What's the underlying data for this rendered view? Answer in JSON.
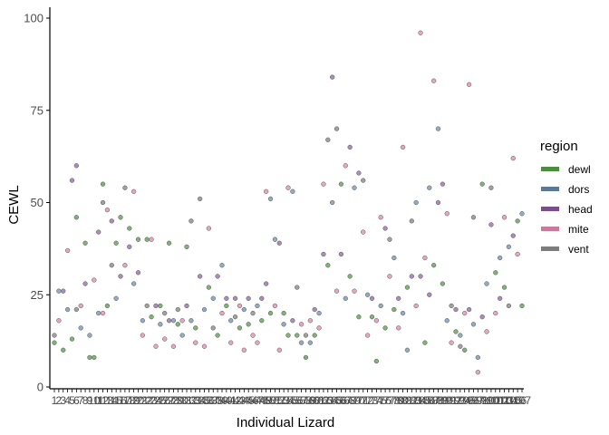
{
  "chart_data": {
    "type": "scatter",
    "xlabel": "Individual Lizard",
    "ylabel": "CEWL",
    "ylim": [
      0,
      100
    ],
    "yticks": [
      0,
      25,
      50,
      75,
      100
    ],
    "legend": {
      "title": "region",
      "position": "right",
      "entries": [
        {
          "name": "dewl",
          "color": "#4a8f3e"
        },
        {
          "name": "dors",
          "color": "#5d7a94"
        },
        {
          "name": "head",
          "color": "#7b4f8c"
        },
        {
          "name": "mite",
          "color": "#c97a9a"
        },
        {
          "name": "vent",
          "color": "#7d7d7d"
        }
      ]
    },
    "colors": {
      "dewl": "#6aa35e",
      "dors": "#7f9cb5",
      "head": "#9b78ad",
      "mite": "#e296b3",
      "vent": "#8f8f8f"
    },
    "x_categories_note_free": true,
    "points": [
      {
        "x": 1,
        "y": 14,
        "region": "vent"
      },
      {
        "x": 1,
        "y": 12,
        "region": "dewl"
      },
      {
        "x": 2,
        "y": 26,
        "region": "dors"
      },
      {
        "x": 2,
        "y": 18,
        "region": "mite"
      },
      {
        "x": 3,
        "y": 10,
        "region": "dewl"
      },
      {
        "x": 3,
        "y": 26,
        "region": "head"
      },
      {
        "x": 4,
        "y": 37,
        "region": "mite"
      },
      {
        "x": 4,
        "y": 21,
        "region": "dors"
      },
      {
        "x": 5,
        "y": 56,
        "region": "head"
      },
      {
        "x": 5,
        "y": 13,
        "region": "dewl"
      },
      {
        "x": 6,
        "y": 60,
        "region": "head"
      },
      {
        "x": 6,
        "y": 46,
        "region": "dewl"
      },
      {
        "x": 6,
        "y": 21,
        "region": "vent"
      },
      {
        "x": 7,
        "y": 22,
        "region": "mite"
      },
      {
        "x": 7,
        "y": 16,
        "region": "dors"
      },
      {
        "x": 8,
        "y": 39,
        "region": "dewl"
      },
      {
        "x": 8,
        "y": 28,
        "region": "head"
      },
      {
        "x": 9,
        "y": 14,
        "region": "dors"
      },
      {
        "x": 9,
        "y": 8,
        "region": "dewl"
      },
      {
        "x": 10,
        "y": 8,
        "region": "dewl"
      },
      {
        "x": 10,
        "y": 29,
        "region": "mite"
      },
      {
        "x": 11,
        "y": 42,
        "region": "head"
      },
      {
        "x": 11,
        "y": 20,
        "region": "dors"
      },
      {
        "x": 12,
        "y": 55,
        "region": "dewl"
      },
      {
        "x": 12,
        "y": 50,
        "region": "vent"
      },
      {
        "x": 12,
        "y": 20,
        "region": "mite"
      },
      {
        "x": 13,
        "y": 48,
        "region": "mite"
      },
      {
        "x": 13,
        "y": 22,
        "region": "dewl"
      },
      {
        "x": 14,
        "y": 45,
        "region": "head"
      },
      {
        "x": 14,
        "y": 33,
        "region": "vent"
      },
      {
        "x": 15,
        "y": 39,
        "region": "dewl"
      },
      {
        "x": 15,
        "y": 24,
        "region": "dors"
      },
      {
        "x": 16,
        "y": 46,
        "region": "dewl"
      },
      {
        "x": 16,
        "y": 30,
        "region": "head"
      },
      {
        "x": 17,
        "y": 54,
        "region": "vent"
      },
      {
        "x": 17,
        "y": 33,
        "region": "mite"
      },
      {
        "x": 18,
        "y": 43,
        "region": "dewl"
      },
      {
        "x": 18,
        "y": 38,
        "region": "head"
      },
      {
        "x": 19,
        "y": 53,
        "region": "mite"
      },
      {
        "x": 19,
        "y": 28,
        "region": "dors"
      },
      {
        "x": 20,
        "y": 40,
        "region": "dewl"
      },
      {
        "x": 20,
        "y": 31,
        "region": "head"
      },
      {
        "x": 21,
        "y": 18,
        "region": "dors"
      },
      {
        "x": 21,
        "y": 14,
        "region": "mite"
      },
      {
        "x": 22,
        "y": 40,
        "region": "dewl"
      },
      {
        "x": 22,
        "y": 22,
        "region": "vent"
      },
      {
        "x": 23,
        "y": 40,
        "region": "mite"
      },
      {
        "x": 23,
        "y": 19,
        "region": "dewl"
      },
      {
        "x": 24,
        "y": 22,
        "region": "head"
      },
      {
        "x": 24,
        "y": 11,
        "region": "mite"
      },
      {
        "x": 25,
        "y": 17,
        "region": "dors"
      },
      {
        "x": 25,
        "y": 22,
        "region": "dewl"
      },
      {
        "x": 26,
        "y": 20,
        "region": "vent"
      },
      {
        "x": 26,
        "y": 13,
        "region": "mite"
      },
      {
        "x": 27,
        "y": 39,
        "region": "dewl"
      },
      {
        "x": 27,
        "y": 18,
        "region": "head"
      },
      {
        "x": 28,
        "y": 18,
        "region": "dors"
      },
      {
        "x": 28,
        "y": 11,
        "region": "mite"
      },
      {
        "x": 29,
        "y": 17,
        "region": "dewl"
      },
      {
        "x": 29,
        "y": 21,
        "region": "vent"
      },
      {
        "x": 30,
        "y": 18,
        "region": "mite"
      },
      {
        "x": 30,
        "y": 14,
        "region": "dors"
      },
      {
        "x": 31,
        "y": 38,
        "region": "dewl"
      },
      {
        "x": 31,
        "y": 22,
        "region": "head"
      },
      {
        "x": 32,
        "y": 45,
        "region": "vent"
      },
      {
        "x": 32,
        "y": 18,
        "region": "dors"
      },
      {
        "x": 33,
        "y": 12,
        "region": "mite"
      },
      {
        "x": 33,
        "y": 16,
        "region": "dewl"
      },
      {
        "x": 34,
        "y": 51,
        "region": "vent"
      },
      {
        "x": 34,
        "y": 30,
        "region": "head"
      },
      {
        "x": 35,
        "y": 21,
        "region": "dors"
      },
      {
        "x": 35,
        "y": 11,
        "region": "mite"
      },
      {
        "x": 36,
        "y": 43,
        "region": "mite"
      },
      {
        "x": 36,
        "y": 27,
        "region": "dewl"
      },
      {
        "x": 37,
        "y": 24,
        "region": "dors"
      },
      {
        "x": 37,
        "y": 16,
        "region": "vent"
      },
      {
        "x": 38,
        "y": 30,
        "region": "head"
      },
      {
        "x": 38,
        "y": 14,
        "region": "dewl"
      },
      {
        "x": 39,
        "y": 33,
        "region": "dors"
      },
      {
        "x": 39,
        "y": 20,
        "region": "mite"
      },
      {
        "x": 40,
        "y": 22,
        "region": "dewl"
      },
      {
        "x": 40,
        "y": 24,
        "region": "head"
      },
      {
        "x": 41,
        "y": 18,
        "region": "dors"
      },
      {
        "x": 41,
        "y": 12,
        "region": "mite"
      },
      {
        "x": 42,
        "y": 24,
        "region": "head"
      },
      {
        "x": 42,
        "y": 19,
        "region": "vent"
      },
      {
        "x": 43,
        "y": 16,
        "region": "dewl"
      },
      {
        "x": 43,
        "y": 22,
        "region": "mite"
      },
      {
        "x": 44,
        "y": 21,
        "region": "dors"
      },
      {
        "x": 44,
        "y": 10,
        "region": "mite"
      },
      {
        "x": 45,
        "y": 24,
        "region": "head"
      },
      {
        "x": 45,
        "y": 17,
        "region": "dewl"
      },
      {
        "x": 46,
        "y": 14,
        "region": "mite"
      },
      {
        "x": 46,
        "y": 20,
        "region": "vent"
      },
      {
        "x": 47,
        "y": 22,
        "region": "dors"
      },
      {
        "x": 47,
        "y": 12,
        "region": "mite"
      },
      {
        "x": 48,
        "y": 24,
        "region": "head"
      },
      {
        "x": 48,
        "y": 18,
        "region": "dewl"
      },
      {
        "x": 49,
        "y": 53,
        "region": "mite"
      },
      {
        "x": 49,
        "y": 28,
        "region": "head"
      },
      {
        "x": 50,
        "y": 51,
        "region": "dors"
      },
      {
        "x": 50,
        "y": 20,
        "region": "dewl"
      },
      {
        "x": 51,
        "y": 40,
        "region": "dors"
      },
      {
        "x": 51,
        "y": 22,
        "region": "mite"
      },
      {
        "x": 52,
        "y": 39,
        "region": "head"
      },
      {
        "x": 52,
        "y": 10,
        "region": "mite"
      },
      {
        "x": 53,
        "y": 20,
        "region": "dewl"
      },
      {
        "x": 53,
        "y": 17,
        "region": "dors"
      },
      {
        "x": 54,
        "y": 54,
        "region": "mite"
      },
      {
        "x": 54,
        "y": 14,
        "region": "dewl"
      },
      {
        "x": 55,
        "y": 53,
        "region": "dors"
      },
      {
        "x": 55,
        "y": 18,
        "region": "head"
      },
      {
        "x": 56,
        "y": 27,
        "region": "vent"
      },
      {
        "x": 56,
        "y": 14,
        "region": "dewl"
      },
      {
        "x": 57,
        "y": 17,
        "region": "mite"
      },
      {
        "x": 57,
        "y": 12,
        "region": "dors"
      },
      {
        "x": 58,
        "y": 8,
        "region": "dewl"
      },
      {
        "x": 58,
        "y": 14,
        "region": "vent"
      },
      {
        "x": 59,
        "y": 18,
        "region": "mite"
      },
      {
        "x": 59,
        "y": 12,
        "region": "dors"
      },
      {
        "x": 60,
        "y": 21,
        "region": "head"
      },
      {
        "x": 60,
        "y": 14,
        "region": "dewl"
      },
      {
        "x": 61,
        "y": 20,
        "region": "dors"
      },
      {
        "x": 61,
        "y": 16,
        "region": "mite"
      },
      {
        "x": 62,
        "y": 55,
        "region": "mite"
      },
      {
        "x": 62,
        "y": 36,
        "region": "head"
      },
      {
        "x": 63,
        "y": 67,
        "region": "vent"
      },
      {
        "x": 63,
        "y": 33,
        "region": "dewl"
      },
      {
        "x": 64,
        "y": 84,
        "region": "head"
      },
      {
        "x": 64,
        "y": 50,
        "region": "dors"
      },
      {
        "x": 65,
        "y": 70,
        "region": "vent"
      },
      {
        "x": 65,
        "y": 26,
        "region": "mite"
      },
      {
        "x": 66,
        "y": 55,
        "region": "dewl"
      },
      {
        "x": 66,
        "y": 36,
        "region": "head"
      },
      {
        "x": 67,
        "y": 60,
        "region": "mite"
      },
      {
        "x": 67,
        "y": 24,
        "region": "dors"
      },
      {
        "x": 68,
        "y": 65,
        "region": "head"
      },
      {
        "x": 68,
        "y": 30,
        "region": "dewl"
      },
      {
        "x": 69,
        "y": 54,
        "region": "dors"
      },
      {
        "x": 69,
        "y": 26,
        "region": "mite"
      },
      {
        "x": 70,
        "y": 58,
        "region": "head"
      },
      {
        "x": 70,
        "y": 19,
        "region": "dewl"
      },
      {
        "x": 71,
        "y": 56,
        "region": "vent"
      },
      {
        "x": 71,
        "y": 42,
        "region": "mite"
      },
      {
        "x": 72,
        "y": 25,
        "region": "dors"
      },
      {
        "x": 72,
        "y": 14,
        "region": "mite"
      },
      {
        "x": 73,
        "y": 19,
        "region": "dewl"
      },
      {
        "x": 73,
        "y": 24,
        "region": "head"
      },
      {
        "x": 74,
        "y": 7,
        "region": "dewl"
      },
      {
        "x": 74,
        "y": 18,
        "region": "mite"
      },
      {
        "x": 75,
        "y": 46,
        "region": "mite"
      },
      {
        "x": 75,
        "y": 22,
        "region": "dors"
      },
      {
        "x": 76,
        "y": 43,
        "region": "head"
      },
      {
        "x": 76,
        "y": 16,
        "region": "dewl"
      },
      {
        "x": 77,
        "y": 40,
        "region": "vent"
      },
      {
        "x": 77,
        "y": 30,
        "region": "mite"
      },
      {
        "x": 78,
        "y": 35,
        "region": "dors"
      },
      {
        "x": 78,
        "y": 21,
        "region": "dewl"
      },
      {
        "x": 79,
        "y": 24,
        "region": "head"
      },
      {
        "x": 79,
        "y": 16,
        "region": "mite"
      },
      {
        "x": 80,
        "y": 65,
        "region": "mite"
      },
      {
        "x": 80,
        "y": 20,
        "region": "dors"
      },
      {
        "x": 81,
        "y": 10,
        "region": "dors"
      },
      {
        "x": 81,
        "y": 27,
        "region": "dewl"
      },
      {
        "x": 82,
        "y": 45,
        "region": "vent"
      },
      {
        "x": 82,
        "y": 30,
        "region": "head"
      },
      {
        "x": 83,
        "y": 50,
        "region": "dors"
      },
      {
        "x": 83,
        "y": 22,
        "region": "mite"
      },
      {
        "x": 84,
        "y": 96,
        "region": "mite"
      },
      {
        "x": 84,
        "y": 30,
        "region": "head"
      },
      {
        "x": 85,
        "y": 12,
        "region": "dewl"
      },
      {
        "x": 85,
        "y": 35,
        "region": "mite"
      },
      {
        "x": 86,
        "y": 54,
        "region": "dors"
      },
      {
        "x": 86,
        "y": 25,
        "region": "head"
      },
      {
        "x": 87,
        "y": 83,
        "region": "mite"
      },
      {
        "x": 87,
        "y": 33,
        "region": "dewl"
      },
      {
        "x": 88,
        "y": 70,
        "region": "dors"
      },
      {
        "x": 88,
        "y": 50,
        "region": "head"
      },
      {
        "x": 89,
        "y": 55,
        "region": "head"
      },
      {
        "x": 89,
        "y": 28,
        "region": "dewl"
      },
      {
        "x": 90,
        "y": 47,
        "region": "mite"
      },
      {
        "x": 90,
        "y": 18,
        "region": "dors"
      },
      {
        "x": 91,
        "y": 22,
        "region": "vent"
      },
      {
        "x": 91,
        "y": 12,
        "region": "mite"
      },
      {
        "x": 92,
        "y": 15,
        "region": "dewl"
      },
      {
        "x": 92,
        "y": 21,
        "region": "head"
      },
      {
        "x": 93,
        "y": 14,
        "region": "dors"
      },
      {
        "x": 93,
        "y": 11,
        "region": "vent"
      },
      {
        "x": 94,
        "y": 20,
        "region": "mite"
      },
      {
        "x": 94,
        "y": 10,
        "region": "dewl"
      },
      {
        "x": 95,
        "y": 82,
        "region": "mite"
      },
      {
        "x": 95,
        "y": 21,
        "region": "head"
      },
      {
        "x": 96,
        "y": 46,
        "region": "vent"
      },
      {
        "x": 96,
        "y": 17,
        "region": "dors"
      },
      {
        "x": 97,
        "y": 4,
        "region": "mite"
      },
      {
        "x": 97,
        "y": 8,
        "region": "dors"
      },
      {
        "x": 98,
        "y": 55,
        "region": "dewl"
      },
      {
        "x": 98,
        "y": 19,
        "region": "head"
      },
      {
        "x": 99,
        "y": 15,
        "region": "mite"
      },
      {
        "x": 99,
        "y": 28,
        "region": "dors"
      },
      {
        "x": 100,
        "y": 54,
        "region": "vent"
      },
      {
        "x": 100,
        "y": 44,
        "region": "head"
      },
      {
        "x": 101,
        "y": 31,
        "region": "dewl"
      },
      {
        "x": 101,
        "y": 20,
        "region": "mite"
      },
      {
        "x": 102,
        "y": 35,
        "region": "dors"
      },
      {
        "x": 102,
        "y": 24,
        "region": "head"
      },
      {
        "x": 103,
        "y": 46,
        "region": "mite"
      },
      {
        "x": 103,
        "y": 27,
        "region": "dewl"
      },
      {
        "x": 104,
        "y": 38,
        "region": "dors"
      },
      {
        "x": 104,
        "y": 22,
        "region": "vent"
      },
      {
        "x": 105,
        "y": 62,
        "region": "mite"
      },
      {
        "x": 105,
        "y": 41,
        "region": "head"
      },
      {
        "x": 106,
        "y": 45,
        "region": "dewl"
      },
      {
        "x": 106,
        "y": 36,
        "region": "mite"
      },
      {
        "x": 107,
        "y": 47,
        "region": "dors"
      },
      {
        "x": 107,
        "y": 22,
        "region": "dewl"
      }
    ],
    "x_tick_count": 107
  }
}
